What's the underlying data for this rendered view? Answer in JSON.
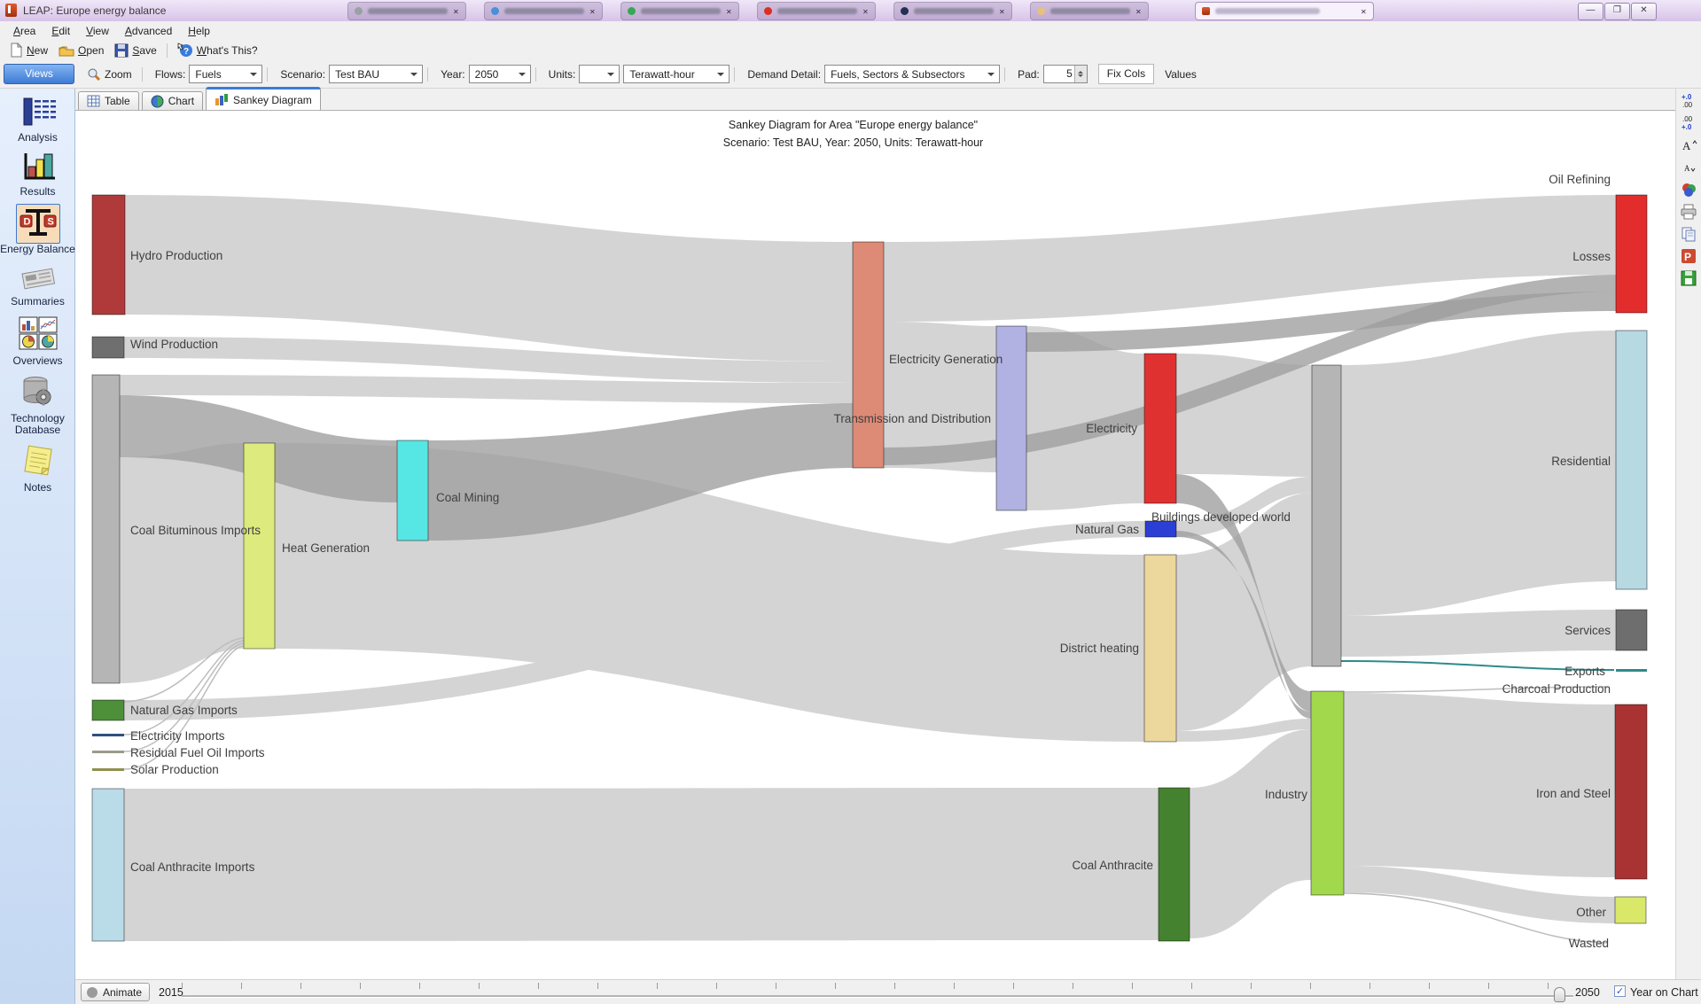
{
  "window": {
    "title": "LEAP: Europe energy balance",
    "controls": {
      "minimize": "—",
      "restore": "❐",
      "close": "✕"
    }
  },
  "menu": {
    "items": [
      "Area",
      "Edit",
      "View",
      "Advanced",
      "Help"
    ]
  },
  "toolbar": {
    "new_label": "New",
    "open_label": "Open",
    "save_label": "Save",
    "whats_this_label": "What's This?"
  },
  "views_header": "Views",
  "filter_bar": {
    "zoom_label": "Zoom",
    "flows_label": "Flows:",
    "flows_value": "Fuels",
    "scenario_label": "Scenario:",
    "scenario_value": "Test BAU",
    "year_label": "Year:",
    "year_value": "2050",
    "units_label": "Units:",
    "units_value": "",
    "units_value2": "Terawatt-hour",
    "demand_label": "Demand Detail:",
    "demand_value": "Fuels, Sectors & Subsectors",
    "pad_label": "Pad:",
    "pad_value": "5",
    "fix_cols_label": "Fix Cols",
    "values_label": "Values"
  },
  "view_tabs": {
    "table": "Table",
    "chart": "Chart",
    "sankey": "Sankey Diagram"
  },
  "sidebar": {
    "items": [
      {
        "label": "Analysis"
      },
      {
        "label": "Results"
      },
      {
        "label": "Energy Balance",
        "selected": true
      },
      {
        "label": "Summaries"
      },
      {
        "label": "Overviews"
      },
      {
        "label": "Technology Database"
      },
      {
        "label": "Notes"
      }
    ]
  },
  "sankey": {
    "title_line1": "Sankey Diagram for Area \"Europe energy balance\"",
    "title_line2": "Scenario: Test BAU, Year: 2050, Units: Terawatt-hour",
    "flow_colors": {
      "light": "#d4d4d4",
      "dark": "#9e9e9e"
    },
    "nodes": {
      "hydro_production": {
        "label": "Hydro Production",
        "color": "#b03a3a"
      },
      "wind_production": {
        "label": "Wind Production",
        "color": "#6f6f6f"
      },
      "coal_bituminous_imports": {
        "label": "Coal Bituminous Imports",
        "color": "#b5b5b5"
      },
      "natural_gas_imports": {
        "label": "Natural Gas Imports",
        "color": "#4e8f3a"
      },
      "electricity_imports": {
        "label": "Electricity Imports",
        "color": "#2f4f7f"
      },
      "residual_fuel_oil_imports": {
        "label": "Residual Fuel Oil Imports",
        "color": "#9b9b8b"
      },
      "solar_production": {
        "label": "Solar Production",
        "color": "#8f8f4f"
      },
      "coal_anthracite_imports": {
        "label": "Coal Anthracite Imports",
        "color": "#b9dce8"
      },
      "heat_generation": {
        "label": "Heat Generation",
        "color": "#dcea7e"
      },
      "coal_mining": {
        "label": "Coal Mining",
        "color": "#56e6e3"
      },
      "electricity_generation": {
        "label": "Electricity Generation",
        "color": "#dd8a76"
      },
      "transmission_and_distribution": {
        "label": "Transmission and Distribution",
        "color": "#b1b2e2"
      },
      "electricity": {
        "label": "Electricity",
        "color": "#e03131"
      },
      "natural_gas": {
        "label": "Natural Gas",
        "color": "#2b3fd4"
      },
      "district_heating": {
        "label": "District heating",
        "color": "#ecd79c"
      },
      "coal_anthracite": {
        "label": "Coal Anthracite",
        "color": "#44822f"
      },
      "buildings_developed_world": {
        "label": "Buildings developed world",
        "color": "#b5b5b5"
      },
      "industry": {
        "label": "Industry",
        "color": "#a2d94c"
      },
      "oil_refining": {
        "label": "Oil Refining"
      },
      "losses": {
        "label": "Losses",
        "color": "#e32d2d"
      },
      "residential": {
        "label": "Residential",
        "color": "#b7d9e2"
      },
      "services": {
        "label": "Services",
        "color": "#6e6e6e"
      },
      "exports": {
        "label": "Exports",
        "color": "#2e8b8b"
      },
      "charcoal_production": {
        "label": "Charcoal Production"
      },
      "iron_and_steel": {
        "label": "Iron and Steel",
        "color": "#a93232"
      },
      "other": {
        "label": "Other",
        "color": "#d9e868"
      },
      "wasted": {
        "label": "Wasted"
      }
    },
    "links": [
      {
        "from": "hydro_production",
        "to": "electricity_generation",
        "shade": "light"
      },
      {
        "from": "wind_production",
        "to": "electricity_generation",
        "shade": "light"
      },
      {
        "from": "coal_bituminous_imports",
        "to": "electricity_generation",
        "shade": "light"
      },
      {
        "from": "coal_bituminous_imports",
        "to": "coal_mining",
        "shade": "dark"
      },
      {
        "from": "coal_bituminous_imports",
        "to": "heat_generation",
        "shade": "light"
      },
      {
        "from": "coal_mining",
        "to": "electricity_generation",
        "shade": "dark"
      },
      {
        "from": "heat_generation",
        "to": "district_heating",
        "shade": "light"
      },
      {
        "from": "natural_gas_imports",
        "to": "natural_gas",
        "shade": "light"
      },
      {
        "from": "electricity_imports",
        "to": "heat_generation",
        "shade": "thin"
      },
      {
        "from": "residual_fuel_oil_imports",
        "to": "heat_generation",
        "shade": "thin"
      },
      {
        "from": "solar_production",
        "to": "heat_generation",
        "shade": "thin"
      },
      {
        "from": "coal_anthracite_imports",
        "to": "coal_anthracite",
        "shade": "light"
      },
      {
        "from": "electricity_generation",
        "to": "losses",
        "shade": "light"
      },
      {
        "from": "electricity_generation",
        "to": "losses",
        "shade": "dark"
      },
      {
        "from": "electricity_generation",
        "to": "transmission_and_distribution",
        "shade": "light"
      },
      {
        "from": "transmission_and_distribution",
        "to": "electricity",
        "shade": "light"
      },
      {
        "from": "transmission_and_distribution",
        "to": "losses",
        "shade": "dark"
      },
      {
        "from": "electricity",
        "to": "buildings_developed_world",
        "shade": "light"
      },
      {
        "from": "electricity",
        "to": "industry",
        "shade": "dark"
      },
      {
        "from": "natural_gas",
        "to": "buildings_developed_world",
        "shade": "light"
      },
      {
        "from": "natural_gas",
        "to": "industry",
        "shade": "dark"
      },
      {
        "from": "district_heating",
        "to": "buildings_developed_world",
        "shade": "light"
      },
      {
        "from": "district_heating",
        "to": "industry",
        "shade": "light"
      },
      {
        "from": "coal_anthracite",
        "to": "industry",
        "shade": "light"
      },
      {
        "from": "buildings_developed_world",
        "to": "residential",
        "shade": "light"
      },
      {
        "from": "buildings_developed_world",
        "to": "services",
        "shade": "light"
      },
      {
        "from": "buildings_developed_world",
        "to": "exports",
        "shade": "thin"
      },
      {
        "from": "industry",
        "to": "iron_and_steel",
        "shade": "light"
      },
      {
        "from": "industry",
        "to": "other",
        "shade": "light"
      },
      {
        "from": "industry",
        "to": "charcoal_production",
        "shade": "thin"
      },
      {
        "from": "industry",
        "to": "wasted",
        "shade": "thin"
      }
    ]
  },
  "right_toolbar": {
    "icons": [
      "increase-decimals",
      "decrease-decimals",
      "increase-font",
      "decrease-font",
      "chart-colors",
      "print",
      "copy",
      "powerpoint-export",
      "save-image"
    ]
  },
  "bottom_bar": {
    "animate_label": "Animate",
    "start_year": "2015",
    "end_year": "2050",
    "year_checkbox_label": "Year on Chart",
    "year_checkbox_checked": true,
    "check_glyph": "✓"
  }
}
